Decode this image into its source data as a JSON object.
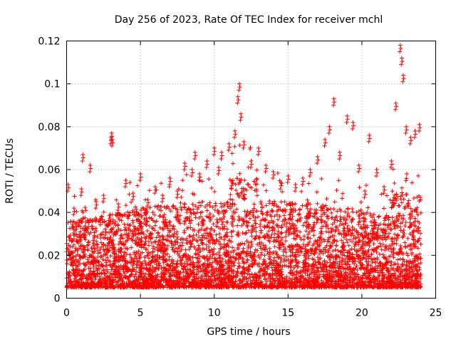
{
  "chart_data": {
    "type": "scatter",
    "title": "Day 256 of 2023, Rate Of TEC Index for receiver mchl",
    "xlabel": "GPS time / hours",
    "ylabel": "ROTI / TECUs",
    "xlim": [
      0,
      25
    ],
    "ylim": [
      0,
      0.12
    ],
    "x_ticks": [
      0,
      5,
      10,
      15,
      20,
      25
    ],
    "x_tick_labels": [
      "0",
      "5",
      "10",
      "15",
      "20",
      "25"
    ],
    "y_ticks": [
      0,
      0.02,
      0.04,
      0.06,
      0.08,
      0.1,
      0.12
    ],
    "y_tick_labels": [
      "0",
      "0.02",
      "0.04",
      "0.06",
      "0.08",
      "0.1",
      "0.12"
    ],
    "grid": true,
    "marker": "plus",
    "color": "#ff0000",
    "envelope_note": "Dense cloud of ROTI samples across 0–24 h; baseline mostly 0.005–0.04, envelope rising toward afternoon",
    "series": [
      {
        "name": "ROTI",
        "x": [
          0.1,
          0.5,
          1.0,
          1.1,
          1.6,
          2.0,
          2.5,
          3.0,
          3.05,
          3.1,
          3.5,
          4.0,
          4.5,
          5.0,
          5.5,
          6.0,
          6.5,
          7.0,
          7.5,
          8.0,
          8.5,
          8.7,
          9.0,
          9.5,
          10.0,
          10.3,
          10.5,
          11.0,
          11.4,
          11.6,
          11.7,
          11.8,
          12.0,
          12.5,
          13.0,
          13.5,
          14.0,
          14.5,
          15.0,
          15.5,
          16.0,
          16.5,
          17.0,
          17.5,
          17.8,
          18.1,
          18.5,
          19.0,
          19.4,
          19.8,
          20.2,
          20.5,
          21.0,
          21.5,
          22.0,
          22.3,
          22.6,
          22.7,
          22.8,
          23.0,
          23.3,
          23.6,
          23.9
        ],
        "y": [
          0.053,
          0.042,
          0.051,
          0.067,
          0.062,
          0.045,
          0.048,
          0.075,
          0.077,
          0.074,
          0.044,
          0.055,
          0.049,
          0.058,
          0.046,
          0.052,
          0.048,
          0.056,
          0.05,
          0.063,
          0.06,
          0.068,
          0.058,
          0.064,
          0.07,
          0.061,
          0.068,
          0.072,
          0.078,
          0.094,
          0.1,
          0.086,
          0.073,
          0.064,
          0.07,
          0.062,
          0.059,
          0.054,
          0.057,
          0.053,
          0.056,
          0.06,
          0.066,
          0.074,
          0.08,
          0.093,
          0.068,
          0.085,
          0.082,
          0.062,
          0.05,
          0.076,
          0.06,
          0.052,
          0.064,
          0.091,
          0.118,
          0.112,
          0.104,
          0.08,
          0.075,
          0.078,
          0.081
        ]
      }
    ]
  }
}
